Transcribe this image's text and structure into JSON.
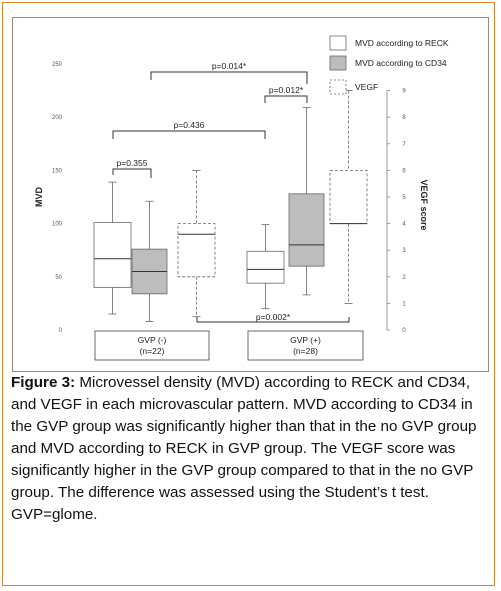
{
  "chart_data": {
    "type": "boxplot",
    "ylabel": "MVD",
    "y2label": "VEGF score",
    "ylim": [
      0,
      250
    ],
    "yticks": [
      0,
      50,
      100,
      150,
      200,
      250
    ],
    "y2lim": [
      0,
      10
    ],
    "y2ticks": [
      0,
      1,
      2,
      3,
      4,
      5,
      6,
      7,
      8,
      9
    ],
    "legend": {
      "position": "top-right",
      "items": [
        {
          "label": "MVD according to RECK",
          "style": "solid-white"
        },
        {
          "label": "MVD according to CD34",
          "style": "solid-gray"
        },
        {
          "label": "VEGF",
          "style": "dashed-white"
        }
      ]
    },
    "groups": [
      {
        "label": "GVP (-)",
        "n_label": "(n=22)",
        "boxes": [
          {
            "series": "MVD according to RECK",
            "axis": "left",
            "whisker_low": 15,
            "q1": 40,
            "median": 67,
            "q3": 101,
            "whisker_high": 139
          },
          {
            "series": "MVD according to CD34",
            "axis": "left",
            "whisker_low": 8,
            "q1": 34,
            "median": 55,
            "q3": 76,
            "whisker_high": 121
          },
          {
            "series": "VEGF",
            "axis": "right",
            "whisker_low": 0.5,
            "q1": 2.0,
            "median": 3.6,
            "q3": 4.0,
            "whisker_high": 6.0
          }
        ]
      },
      {
        "label": "GVP (+)",
        "n_label": "(n=28)",
        "boxes": [
          {
            "series": "MVD according to RECK",
            "axis": "left",
            "whisker_low": 20,
            "q1": 44,
            "median": 57,
            "q3": 74,
            "whisker_high": 99
          },
          {
            "series": "MVD according to CD34",
            "axis": "left",
            "whisker_low": 33,
            "q1": 60,
            "median": 80,
            "q3": 128,
            "whisker_high": 209
          },
          {
            "series": "VEGF",
            "axis": "right",
            "whisker_low": 1.0,
            "q1": 4.0,
            "median": 4.0,
            "q3": 6.0,
            "whisker_high": 9.0
          }
        ]
      }
    ],
    "annotations": [
      {
        "text": "p=0.355",
        "from": [
          0,
          0
        ],
        "to": [
          0,
          1
        ],
        "value": 0.355,
        "placement": "above"
      },
      {
        "text": "p=0.436",
        "from": [
          0,
          0
        ],
        "to": [
          1,
          0
        ],
        "value": 0.436,
        "placement": "above"
      },
      {
        "text": "p=0.012*",
        "from": [
          1,
          0
        ],
        "to": [
          1,
          1
        ],
        "value": 0.012,
        "placement": "above"
      },
      {
        "text": "p=0.014*",
        "from": [
          0,
          1
        ],
        "to": [
          1,
          1
        ],
        "value": 0.014,
        "placement": "above"
      },
      {
        "text": "p=0.002*",
        "from": [
          0,
          2
        ],
        "to": [
          1,
          2
        ],
        "value": 0.002,
        "placement": "below"
      }
    ]
  },
  "caption": {
    "label": "Figure 3:",
    "text": " Microvessel density (MVD) according to RECK and CD34, and VEGF in each microvascular pattern. MVD according to CD34 in the GVP group was significantly higher than that in the no GVP group and MVD according to RECK in GVP group. The VEGF score was significantly higher in the GVP group compared to that in the no GVP group. The difference was assessed using the Student’s t test. GVP=glome."
  },
  "colors": {
    "frame": "#d7842f",
    "cd34_fill": "#bdbdbd",
    "line": "#666666",
    "text": "#111111"
  }
}
